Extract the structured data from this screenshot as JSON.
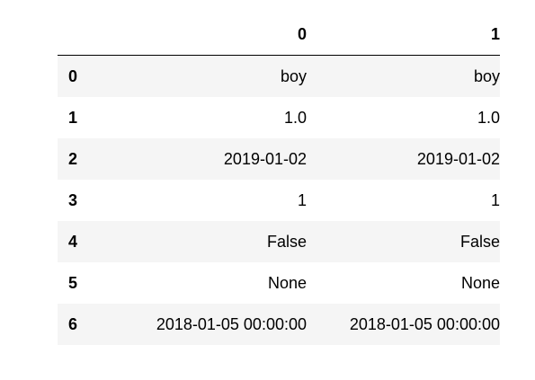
{
  "table": {
    "columns": [
      "0",
      "1"
    ],
    "rows": [
      {
        "index": "0",
        "cells": [
          "boy",
          "boy"
        ]
      },
      {
        "index": "1",
        "cells": [
          "1.0",
          "1.0"
        ]
      },
      {
        "index": "2",
        "cells": [
          "2019-01-02",
          "2019-01-02"
        ]
      },
      {
        "index": "3",
        "cells": [
          "1",
          "1"
        ]
      },
      {
        "index": "4",
        "cells": [
          "False",
          "False"
        ]
      },
      {
        "index": "5",
        "cells": [
          "None",
          "None"
        ]
      },
      {
        "index": "6",
        "cells": [
          "2018-01-05 00:00:00",
          "2018-01-05 00:00:00"
        ]
      }
    ]
  },
  "colors": {
    "stripe": "#f5f5f5",
    "background": "#ffffff",
    "text": "#000000"
  }
}
